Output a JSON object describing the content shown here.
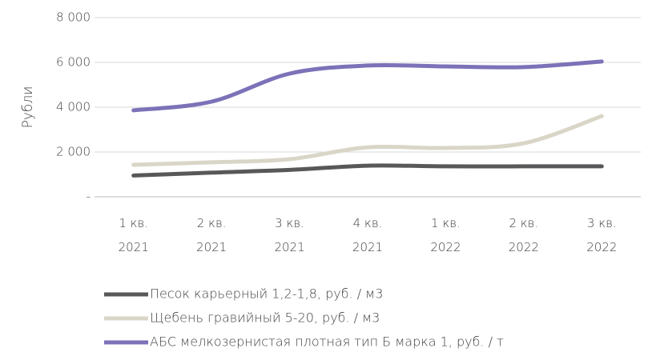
{
  "chart_data": {
    "type": "line",
    "ylabel": "Рубли",
    "categories": [
      "1 кв.\n2021",
      "2 кв.\n2021",
      "3 кв.\n2021",
      "4 кв.\n2021",
      "1 кв.\n2022",
      "2 кв.\n2022",
      "3 кв.\n2022"
    ],
    "series": [
      {
        "name": "Песок карьерный 1,2-1,8, руб. / м3",
        "color": "#58585a",
        "values": [
          950,
          1080,
          1200,
          1390,
          1360,
          1360,
          1360
        ]
      },
      {
        "name": "Щебень гравийный 5-20, руб. / м3",
        "color": "#d9d6c8",
        "values": [
          1430,
          1540,
          1680,
          2210,
          2180,
          2390,
          3600
        ]
      },
      {
        "name": "АБС мелкозернистая плотная  тип Б марка 1, руб. / т",
        "color": "#7b72b8",
        "values": [
          3860,
          4250,
          5500,
          5860,
          5820,
          5790,
          6040
        ]
      }
    ],
    "ylim": [
      0,
      8000
    ],
    "yticks": [
      {
        "value": 0,
        "label": "-"
      },
      {
        "value": 2000,
        "label": "2 000"
      },
      {
        "value": 4000,
        "label": "4 000"
      },
      {
        "value": 6000,
        "label": "6 000"
      },
      {
        "value": 8000,
        "label": "8 000"
      }
    ],
    "grid": true,
    "legend": "bottom"
  }
}
